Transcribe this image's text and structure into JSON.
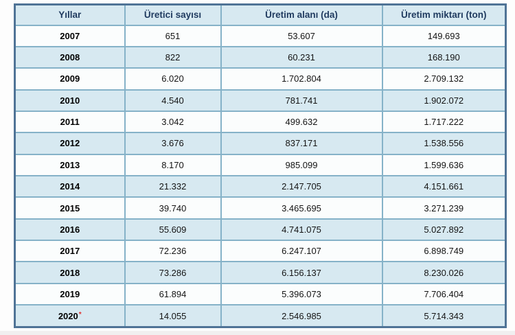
{
  "table": {
    "columns": [
      "Yıllar",
      "Üretici sayısı",
      "Üretim alanı (da)",
      "Üretim miktarı (ton)"
    ],
    "footnote_marker": "*",
    "rows": [
      {
        "year": "2007",
        "note": "",
        "producers": "651",
        "area": "53.607",
        "amount": "149.693"
      },
      {
        "year": "2008",
        "note": "",
        "producers": "822",
        "area": "60.231",
        "amount": "168.190"
      },
      {
        "year": "2009",
        "note": "",
        "producers": "6.020",
        "area": "1.702.804",
        "amount": "2.709.132"
      },
      {
        "year": "2010",
        "note": "",
        "producers": "4.540",
        "area": "781.741",
        "amount": "1.902.072"
      },
      {
        "year": "2011",
        "note": "",
        "producers": "3.042",
        "area": "499.632",
        "amount": "1.717.222"
      },
      {
        "year": "2012",
        "note": "",
        "producers": "3.676",
        "area": "837.171",
        "amount": "1.538.556"
      },
      {
        "year": "2013",
        "note": "",
        "producers": "8.170",
        "area": "985.099",
        "amount": "1.599.636"
      },
      {
        "year": "2014",
        "note": "",
        "producers": "21.332",
        "area": "2.147.705",
        "amount": "4.151.661"
      },
      {
        "year": "2015",
        "note": "",
        "producers": "39.740",
        "area": "3.465.695",
        "amount": "3.271.239"
      },
      {
        "year": "2016",
        "note": "",
        "producers": "55.609",
        "area": "4.741.075",
        "amount": "5.027.892"
      },
      {
        "year": "2017",
        "note": "",
        "producers": "72.236",
        "area": "6.247.107",
        "amount": "6.898.749"
      },
      {
        "year": "2018",
        "note": "",
        "producers": "73.286",
        "area": "6.156.137",
        "amount": "8.230.026"
      },
      {
        "year": "2019",
        "note": "",
        "producers": "61.894",
        "area": "5.396.073",
        "amount": "7.706.404"
      },
      {
        "year": "2020",
        "note": "*",
        "producers": "14.055",
        "area": "2.546.985",
        "amount": "5.714.343"
      }
    ]
  },
  "chart_data": {
    "type": "table",
    "title": "",
    "categories": [
      "2007",
      "2008",
      "2009",
      "2010",
      "2011",
      "2012",
      "2013",
      "2014",
      "2015",
      "2016",
      "2017",
      "2018",
      "2019",
      "2020*"
    ],
    "series": [
      {
        "name": "Üretici sayısı",
        "values": [
          651,
          822,
          6020,
          4540,
          3042,
          3676,
          8170,
          21332,
          39740,
          55609,
          72236,
          73286,
          61894,
          14055
        ]
      },
      {
        "name": "Üretim alanı (da)",
        "values": [
          53607,
          60231,
          1702804,
          781741,
          499632,
          837171,
          985099,
          2147705,
          3465695,
          4741075,
          6247107,
          6156137,
          5396073,
          2546985
        ]
      },
      {
        "name": "Üretim miktarı (ton)",
        "values": [
          149693,
          168190,
          2709132,
          1902072,
          1717222,
          1538556,
          1599636,
          4151661,
          3271239,
          5027892,
          6898749,
          8230026,
          7706404,
          5714343
        ]
      }
    ],
    "layout_hints": {
      "header_row": true,
      "striped": true,
      "grid": true
    }
  },
  "colors": {
    "header_bg": "#d7e9f1",
    "stripe_bg": "#d7e9f1",
    "white_row_bg": "#fbfdfd",
    "outer_border": "#4f7396",
    "inner_border": "#85b2c8",
    "header_text": "#1f3a5f",
    "year_text": "#000000",
    "data_text": "#141414",
    "footnote_red": "#e03131"
  }
}
